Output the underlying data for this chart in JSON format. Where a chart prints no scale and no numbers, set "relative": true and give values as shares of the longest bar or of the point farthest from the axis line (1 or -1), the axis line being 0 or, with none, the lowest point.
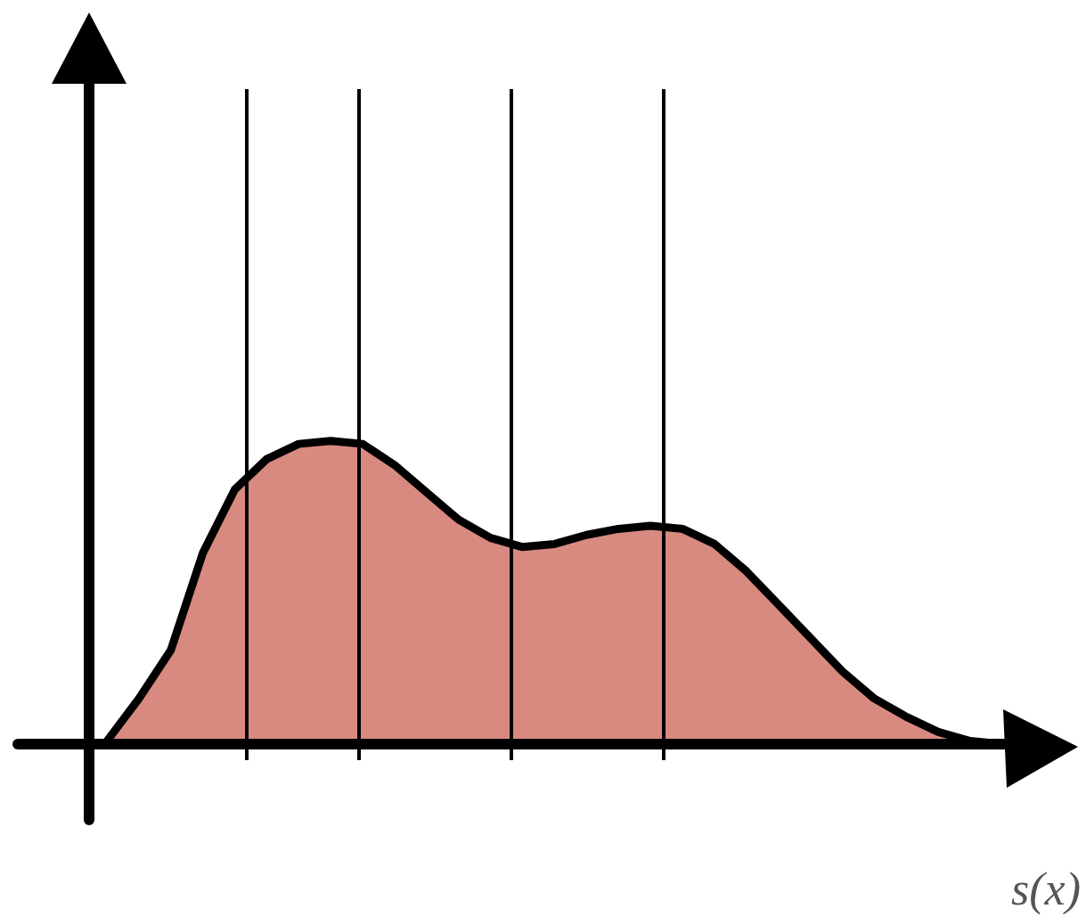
{
  "chart_data": {
    "type": "area",
    "xlabel": "s(x)",
    "relative": true,
    "categories": [
      null,
      null,
      null,
      null,
      null,
      null,
      null,
      null,
      null,
      null,
      null,
      null,
      null,
      null,
      null,
      null,
      null,
      null,
      null,
      null,
      null,
      null,
      null,
      null,
      null,
      null,
      null,
      null,
      null
    ],
    "series": [
      {
        "color": "#d98a80",
        "values": [
          0.01,
          0.15,
          0.31,
          0.63,
          0.84,
          0.94,
          0.99,
          1,
          0.99,
          0.92,
          0.83,
          0.74,
          0.68,
          0.65,
          0.66,
          0.69,
          0.71,
          0.72,
          0.71,
          0.66,
          0.57,
          0.46,
          0.35,
          0.24,
          0.15,
          0.09,
          0.04,
          0.01,
          0
        ]
      }
    ]
  }
}
